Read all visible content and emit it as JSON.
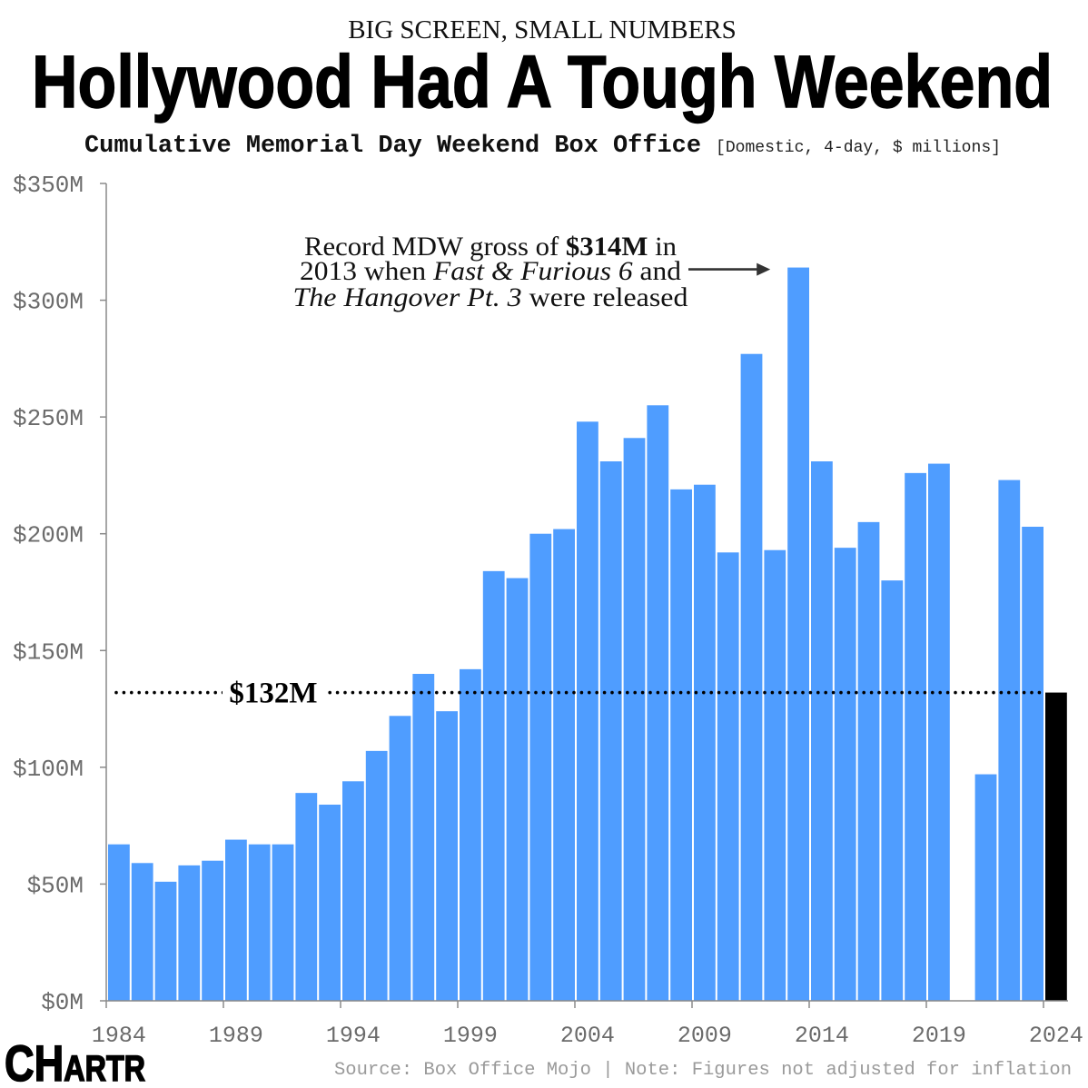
{
  "header": {
    "kicker": "BIG SCREEN, SMALL NUMBERS",
    "headline": "Hollywood Had A Tough Weekend"
  },
  "chart_data": {
    "type": "bar",
    "title": "Cumulative Memorial Day Weekend Box Office",
    "subtitle": "[Domestic, 4-day, $ millions]",
    "ylim": [
      0,
      350
    ],
    "y_ticks": [
      0,
      50,
      100,
      150,
      200,
      250,
      300,
      350
    ],
    "y_tick_labels": [
      "$0M",
      "$50M",
      "$100M",
      "$150M",
      "$200M",
      "$250M",
      "$300M",
      "$350M"
    ],
    "x": [
      1984,
      1985,
      1986,
      1987,
      1988,
      1989,
      1990,
      1991,
      1992,
      1993,
      1994,
      1995,
      1996,
      1997,
      1998,
      1999,
      2000,
      2001,
      2002,
      2003,
      2004,
      2005,
      2006,
      2007,
      2008,
      2009,
      2010,
      2011,
      2012,
      2013,
      2014,
      2015,
      2016,
      2017,
      2018,
      2019,
      2020,
      2021,
      2022,
      2023,
      2024
    ],
    "values": [
      67,
      59,
      51,
      58,
      60,
      69,
      67,
      67,
      89,
      84,
      94,
      107,
      122,
      140,
      124,
      142,
      184,
      181,
      200,
      202,
      248,
      231,
      241,
      255,
      219,
      221,
      192,
      277,
      193,
      314,
      231,
      194,
      205,
      180,
      226,
      230,
      null,
      97,
      223,
      203,
      132
    ],
    "x_ticks": [
      1984,
      1989,
      1994,
      1999,
      2004,
      2009,
      2014,
      2019,
      2024
    ],
    "x_tick_labels": [
      "1984",
      "1989",
      "1994",
      "1999",
      "2004",
      "2009",
      "2014",
      "2019",
      "2024"
    ],
    "highlight": {
      "year": 2024,
      "value": 132
    },
    "reference_line": {
      "value": 132,
      "label": "$132M"
    },
    "annotation": {
      "target_year": 2013,
      "target_value": 314,
      "lines": [
        [
          "Record MDW gross of ",
          "$314M",
          " in"
        ],
        [
          "2013 when ",
          "Fast & Furious 6",
          " and"
        ],
        [
          "The Hangover Pt. 3",
          " were released"
        ]
      ]
    }
  },
  "colors": {
    "bar": "#4f9dff",
    "highlight": "#000000",
    "axis": "#8a8a8a",
    "tick_label": "#6b6b6b",
    "source": "#9a9a9a"
  },
  "footer": {
    "logo": {
      "large": "CH",
      "small": "ARTR"
    },
    "source": "Source: Box Office Mojo | Note: Figures not adjusted for inflation"
  }
}
